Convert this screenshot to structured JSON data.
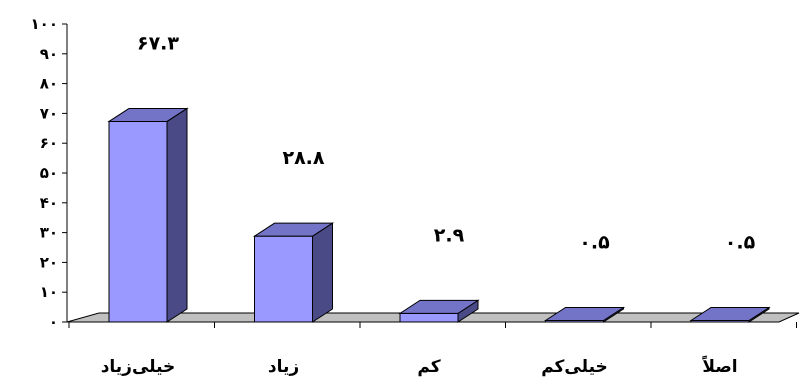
{
  "chart_data": {
    "type": "bar",
    "style": "3d-column",
    "categories": [
      "خیلی‌زیاد",
      "زیاد",
      "کم",
      "خیلی‌کم",
      "اصلاً"
    ],
    "values": [
      67.3,
      28.8,
      2.9,
      0.5,
      0.5
    ],
    "value_labels": [
      "۶۷.۳",
      "۲۸.۸",
      "۲.۹",
      "۰.۵",
      "۰.۵"
    ],
    "ylim": [
      0,
      100
    ],
    "yticks": [
      0,
      10,
      20,
      30,
      40,
      50,
      60,
      70,
      80,
      90,
      100
    ],
    "ytick_labels": [
      "۰",
      "۱۰",
      "۲۰",
      "۳۰",
      "۴۰",
      "۵۰",
      "۶۰",
      "۷۰",
      "۸۰",
      "۹۰",
      "۱۰۰"
    ],
    "grid": false,
    "legend": "none",
    "colors": {
      "bar_front": "#9999ff",
      "bar_side": "#4a4a86",
      "bar_top": "#7373c8",
      "floor": "#c0c0c0",
      "axis": "#000000"
    }
  }
}
